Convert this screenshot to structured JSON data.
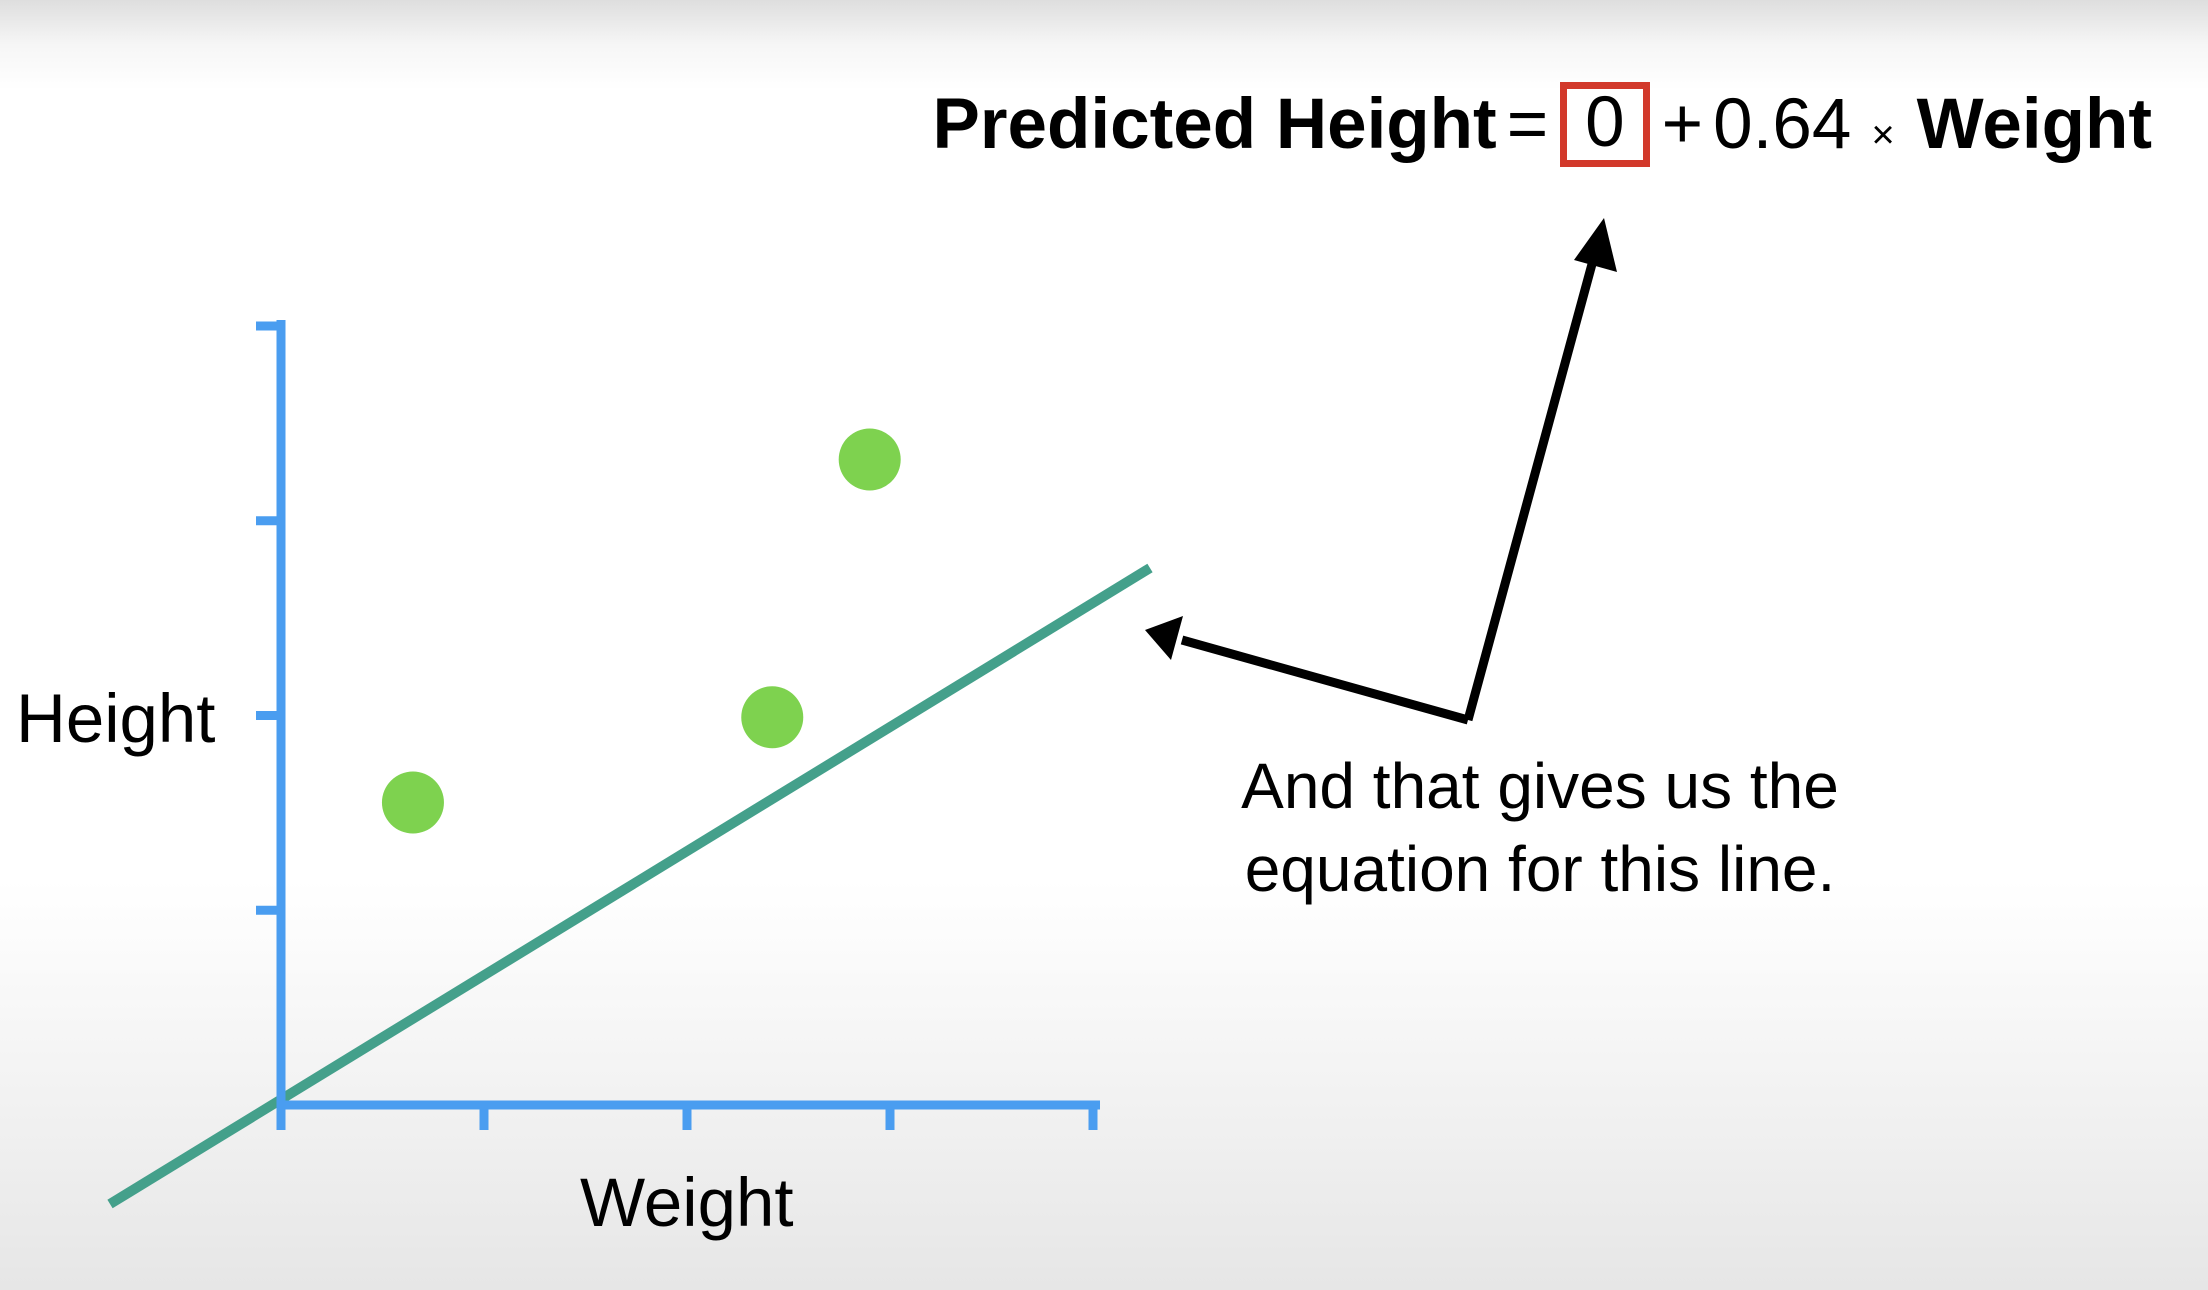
{
  "equation": {
    "lhs": "Predicted Height",
    "equals": "=",
    "intercept": "0",
    "plus": "+",
    "slope": "0.64",
    "times": "×",
    "variable": "Weight"
  },
  "axes": {
    "x_label": "Weight",
    "y_label": "Height"
  },
  "annotation": {
    "text": "And that gives us the equation for this line."
  },
  "colors": {
    "axis": "#4a9df0",
    "points": "#7ed24f",
    "fit_line": "#44a08b",
    "highlight_box": "#d2392b",
    "arrow": "#000000"
  },
  "chart_data": {
    "type": "scatter",
    "x_ticks": 4,
    "y_ticks": 4,
    "points": [
      {
        "x": 0.65,
        "y": 1.49
      },
      {
        "x": 2.42,
        "y": 1.91
      },
      {
        "x": 2.9,
        "y": 3.18
      }
    ],
    "fit_line": {
      "intercept": 0,
      "slope": 0.64
    }
  }
}
